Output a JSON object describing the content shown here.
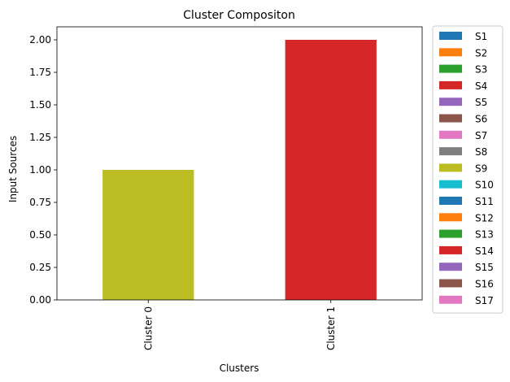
{
  "chart_data": {
    "type": "bar",
    "stacked": true,
    "title": "Cluster Compositon",
    "xlabel": "Clusters",
    "ylabel": "Input Sources",
    "categories": [
      "Cluster 0",
      "Cluster 1"
    ],
    "ylim": [
      0,
      2.1
    ],
    "yticks": [
      "0.00",
      "0.25",
      "0.50",
      "0.75",
      "1.00",
      "1.25",
      "1.50",
      "1.75",
      "2.00"
    ],
    "legend_position": "outside-right",
    "grid": false,
    "series": [
      {
        "name": "S1",
        "color": "#1f77b4",
        "values": [
          0,
          0
        ]
      },
      {
        "name": "S2",
        "color": "#ff7f0e",
        "values": [
          0,
          0
        ]
      },
      {
        "name": "S3",
        "color": "#2ca02c",
        "values": [
          0,
          0
        ]
      },
      {
        "name": "S4",
        "color": "#d62728",
        "values": [
          0,
          1
        ]
      },
      {
        "name": "S5",
        "color": "#9467bd",
        "values": [
          0,
          0
        ]
      },
      {
        "name": "S6",
        "color": "#8c564b",
        "values": [
          0,
          0
        ]
      },
      {
        "name": "S7",
        "color": "#e377c2",
        "values": [
          0,
          0
        ]
      },
      {
        "name": "S8",
        "color": "#7f7f7f",
        "values": [
          0,
          0
        ]
      },
      {
        "name": "S9",
        "color": "#bcbd22",
        "values": [
          1,
          0
        ]
      },
      {
        "name": "S10",
        "color": "#17becf",
        "values": [
          0,
          0
        ]
      },
      {
        "name": "S11",
        "color": "#1f77b4",
        "values": [
          0,
          0
        ]
      },
      {
        "name": "S12",
        "color": "#ff7f0e",
        "values": [
          0,
          0
        ]
      },
      {
        "name": "S13",
        "color": "#2ca02c",
        "values": [
          0,
          0
        ]
      },
      {
        "name": "S14",
        "color": "#d62728",
        "values": [
          0,
          1
        ]
      },
      {
        "name": "S15",
        "color": "#9467bd",
        "values": [
          0,
          0
        ]
      },
      {
        "name": "S16",
        "color": "#8c564b",
        "values": [
          0,
          0
        ]
      },
      {
        "name": "S17",
        "color": "#e377c2",
        "values": [
          0,
          0
        ]
      }
    ]
  }
}
